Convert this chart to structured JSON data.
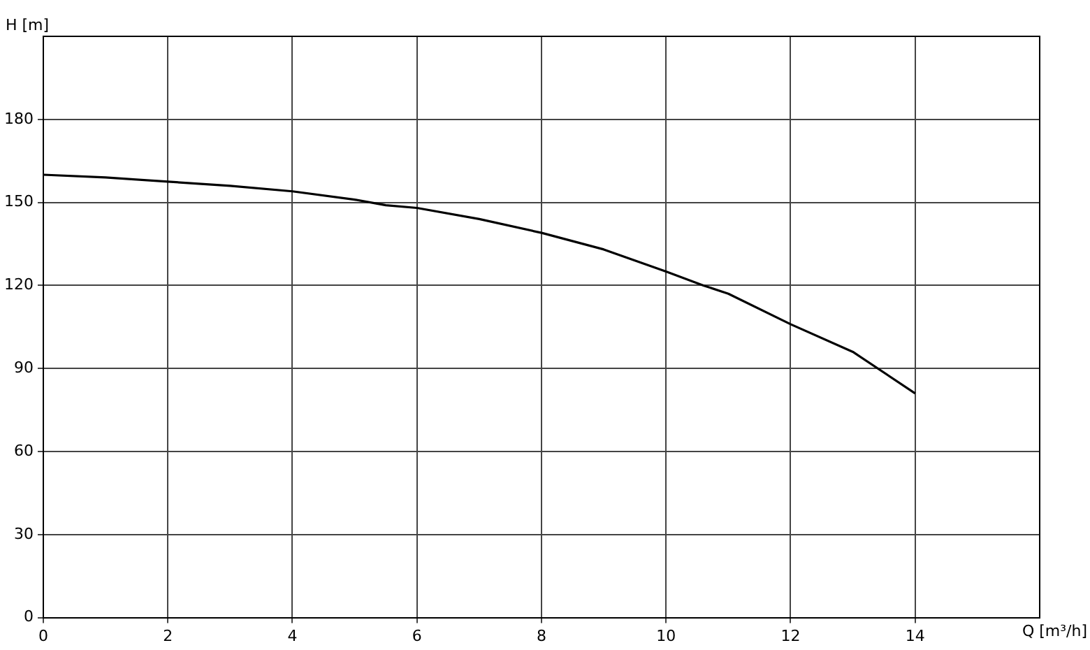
{
  "chart_data": {
    "type": "line",
    "xlabel": "Q [m³/h]",
    "ylabel": "H [m]",
    "x": [
      0,
      1,
      2,
      3,
      4,
      5,
      5.5,
      6,
      7,
      8,
      9,
      10,
      10.6,
      11,
      12,
      13,
      14
    ],
    "series": [
      {
        "color": "#000000",
        "values": [
          160,
          159,
          157.5,
          156,
          154,
          151,
          149,
          148,
          144,
          139,
          133,
          125,
          120,
          117,
          106,
          96,
          81
        ]
      }
    ],
    "xlim": [
      0,
      16
    ],
    "xticks": [
      0,
      2,
      4,
      6,
      8,
      10,
      12,
      14
    ],
    "ylim": [
      0,
      210
    ],
    "yticks": [
      0,
      30,
      60,
      90,
      120,
      150,
      180
    ],
    "grid": true,
    "legend": false,
    "marker": "none",
    "line_style": "solid"
  }
}
